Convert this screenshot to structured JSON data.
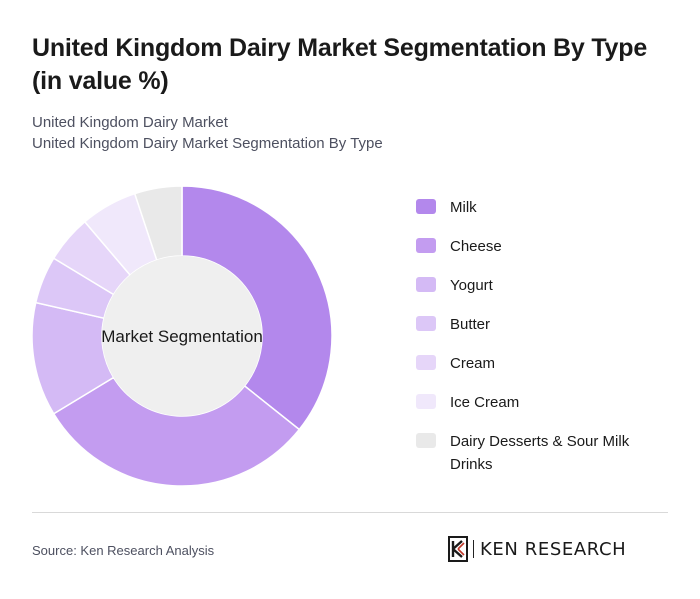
{
  "title": "United Kingdom Dairy Market Segmentation By Type (in value %)",
  "subtitle_1": "United Kingdom Dairy Market",
  "subtitle_2": "United Kingdom Dairy Market Segmentation By Type",
  "source": "Source: Ken Research Analysis",
  "brand": "KEN RESEARCH",
  "chart_data": {
    "type": "pie",
    "center_label": "Market Segmentation",
    "categories": [
      "Milk",
      "Cheese",
      "Yogurt",
      "Butter",
      "Cream",
      "Ice Cream",
      "Dairy Desserts & Sour Milk Drinks"
    ],
    "values": [
      35,
      30,
      12,
      5,
      5,
      6,
      5
    ],
    "colors": [
      "#b388ec",
      "#c39cf0",
      "#d4baf5",
      "#dcc7f7",
      "#e6d6f9",
      "#f0e8fb",
      "#e9e9e9"
    ],
    "legend_position": "right"
  }
}
